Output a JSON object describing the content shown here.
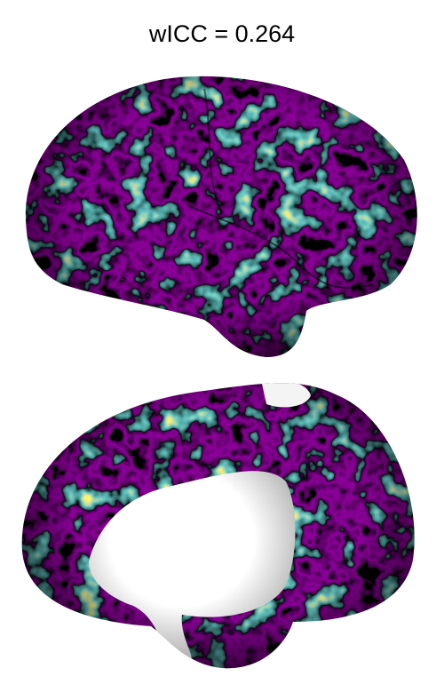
{
  "title": "wICC = 0.264"
}
